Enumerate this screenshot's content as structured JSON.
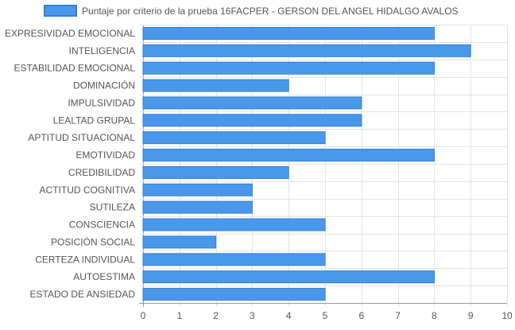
{
  "chart_data": {
    "type": "bar",
    "orientation": "horizontal",
    "categories": [
      "EXPRESIVIDAD EMOCIONAL",
      "INTELIGENCIA",
      "ESTABILIDAD EMOCIONAL",
      "DOMINACIÓN",
      "IMPULSIVIDAD",
      "LEALTAD GRUPAL",
      "APTITUD SITUACIONAL",
      "EMOTIVIDAD",
      "CREDIBILIDAD",
      "ACTITUD COGNITIVA",
      "SUTILEZA",
      "CONSCIENCIA",
      "POSICIÓN SOCIAL",
      "CERTEZA INDIVIDUAL",
      "AUTOESTIMA",
      "ESTADO DE ANSIEDAD"
    ],
    "series": [
      {
        "name": "Puntaje por criterio de la prueba 16FACPER - GERSON DEL ANGEL HIDALGO AVALOS",
        "values": [
          8,
          9,
          8,
          4,
          6,
          6,
          5,
          8,
          4,
          3,
          3,
          5,
          2,
          5,
          8,
          5
        ]
      }
    ],
    "xlim": [
      0,
      10
    ],
    "xticks": [
      "0",
      "1",
      "2",
      "3",
      "4",
      "5",
      "6",
      "7",
      "8",
      "9",
      "10"
    ],
    "grid": true,
    "legend": "top",
    "colors": {
      "bar_fill": "#4a98eb",
      "bar_stroke": "#2f7fd8",
      "grid": "#e4e4e4",
      "axis": "#9a9a9a",
      "text": "#555555"
    }
  }
}
